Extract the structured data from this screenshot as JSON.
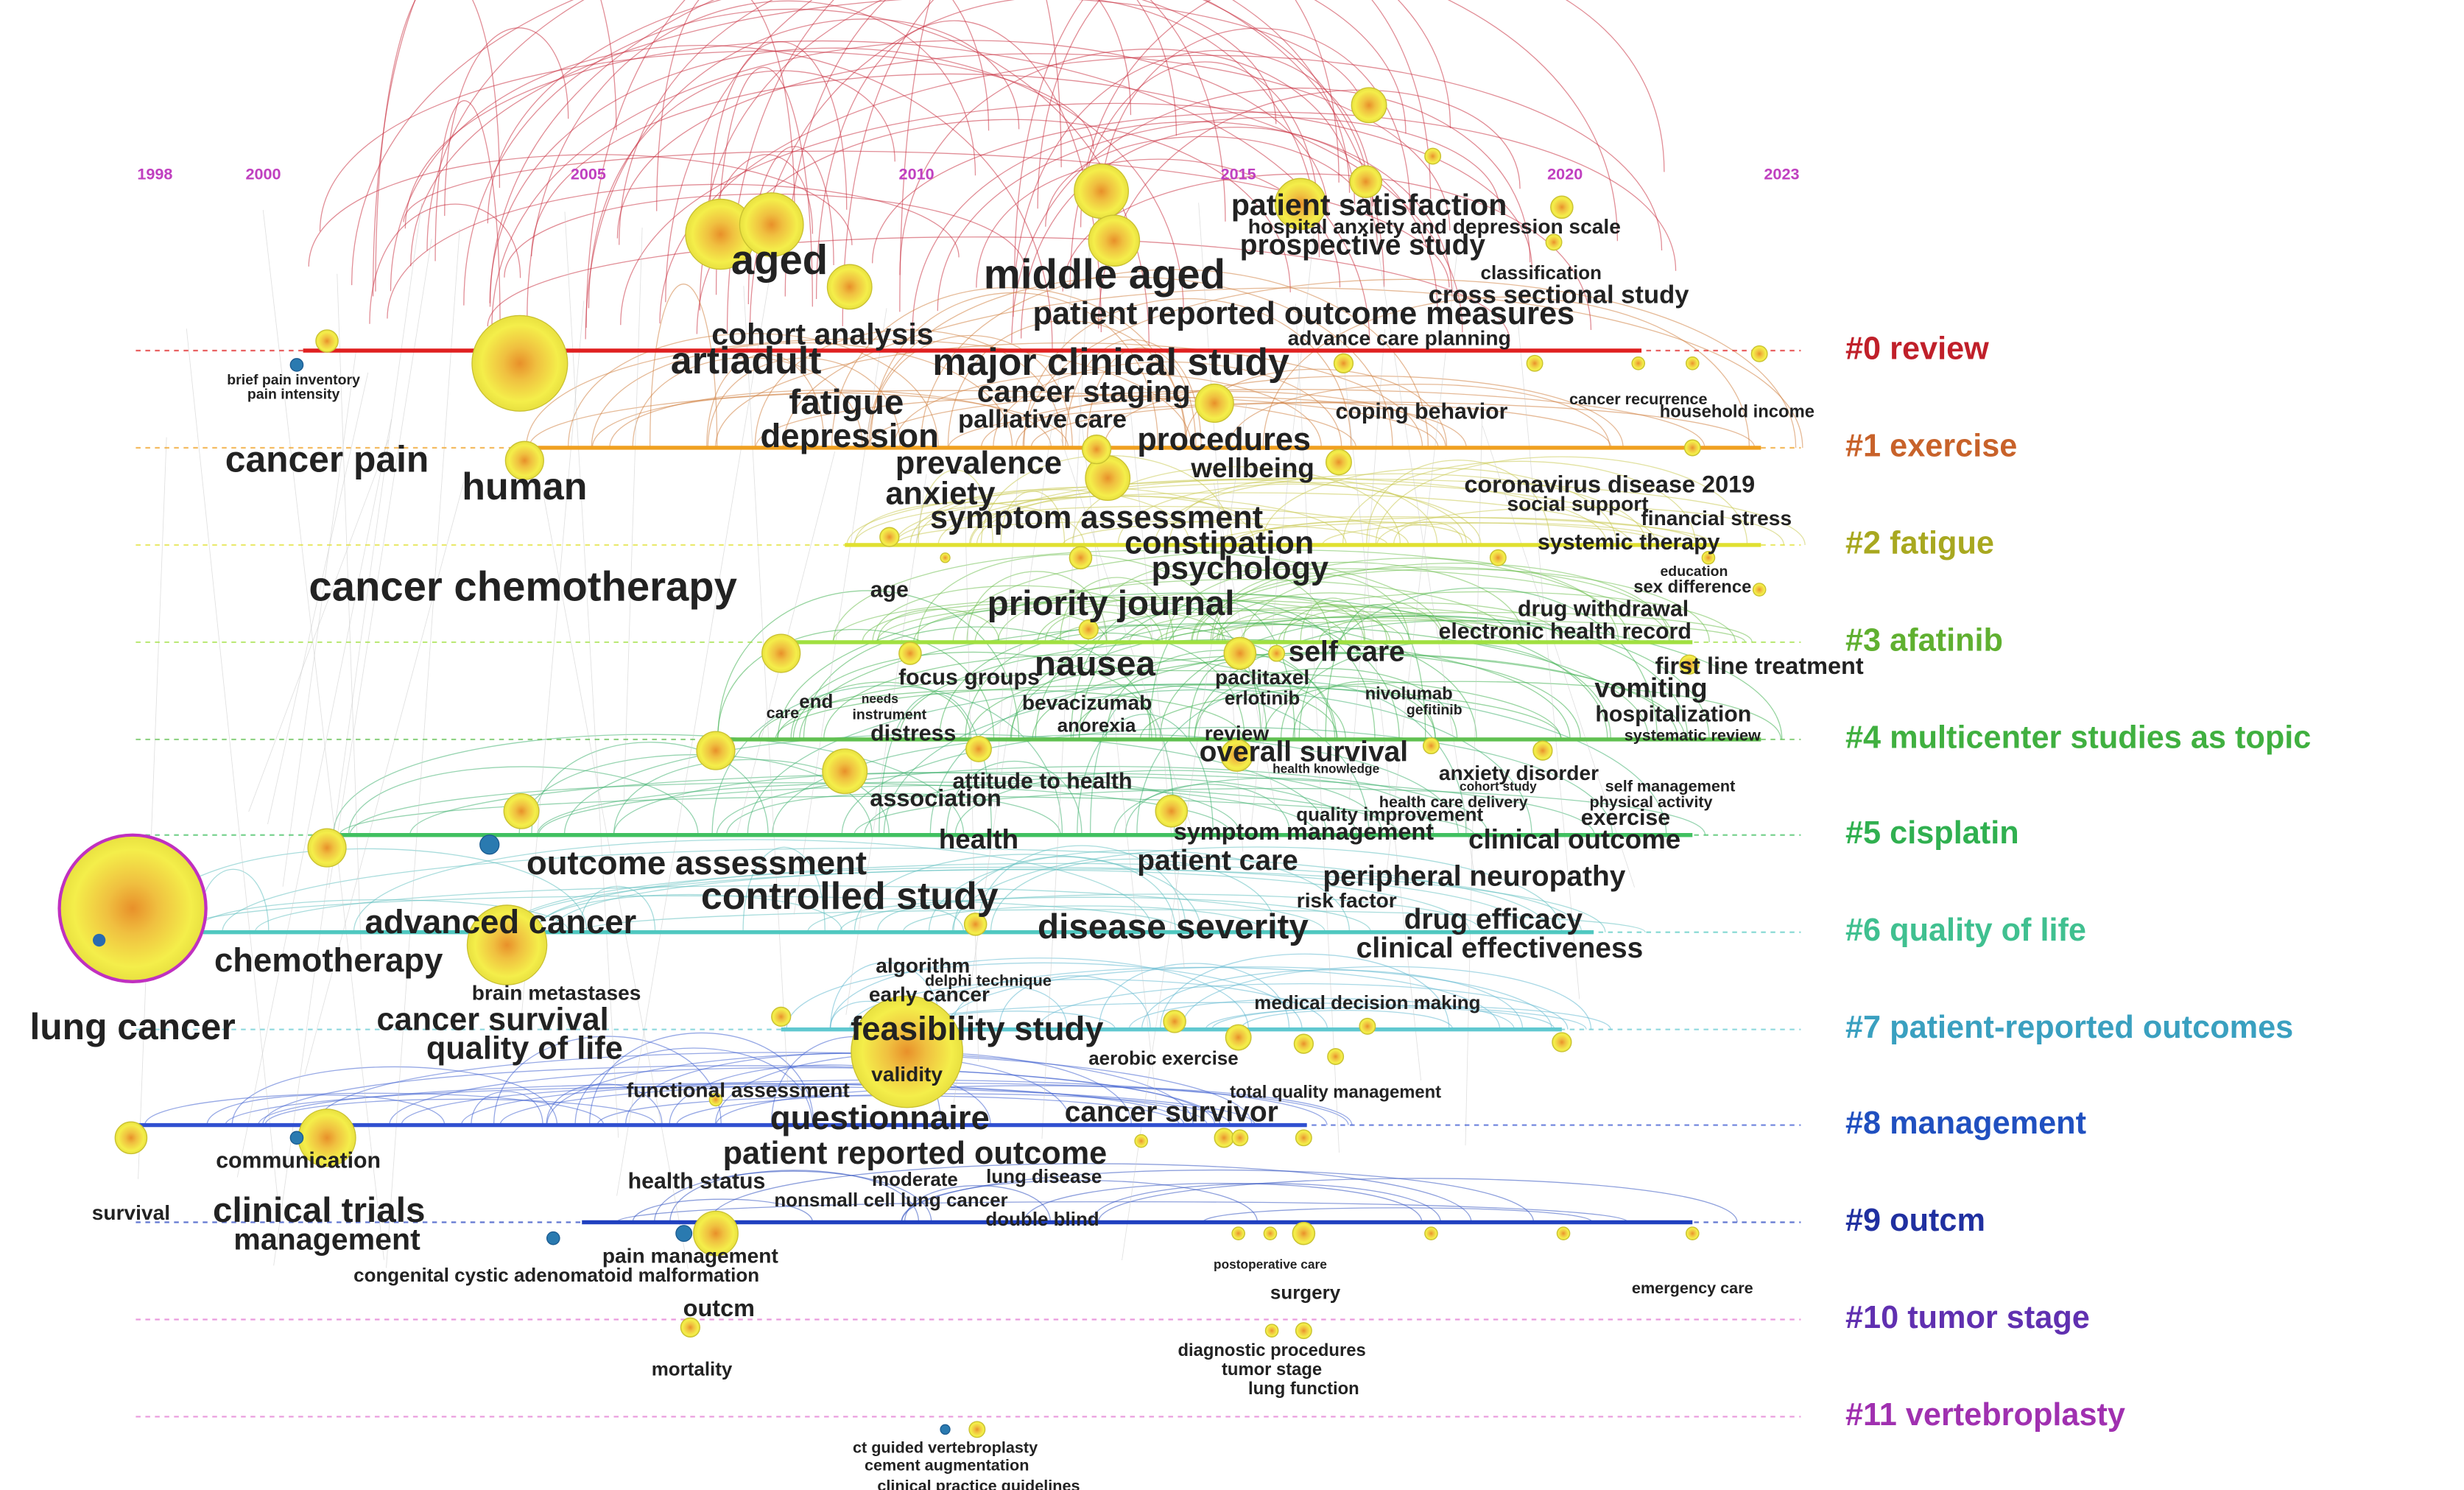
{
  "timeline": {
    "years": [
      "1998",
      "2000",
      "2005",
      "2010",
      "2015",
      "2020",
      "2023"
    ]
  },
  "clusters": [
    "#0 review",
    "#1 exercise",
    "#2 fatigue",
    "#3 afatinib",
    "#4 multicenter studies as topic",
    "#5 cisplatin",
    "#6 quality of life",
    "#7 patient-reported outcomes",
    "#8 management",
    "#9 outcm",
    "#10 tumor stage",
    "#11 vertebroplasty"
  ],
  "keywords": [
    "aged",
    "artiadult",
    "middle aged",
    "patient satisfaction",
    "hospital anxiety and depression scale",
    "prospective study",
    "classification",
    "cross sectional study",
    "patient reported outcome measures",
    "cohort analysis",
    "advance care planning",
    "major clinical study",
    "brief pain inventory",
    "pain intensity",
    "fatigue",
    "cancer staging",
    "palliative care",
    "coping behavior",
    "cancer recurrence",
    "household income",
    "depression",
    "procedures",
    "cancer pain",
    "prevalence",
    "wellbeing",
    "human",
    "coronavirus disease 2019",
    "anxiety",
    "social support",
    "symptom assessment",
    "financial stress",
    "constipation",
    "systemic therapy",
    "psychology",
    "education",
    "cancer chemotherapy",
    "age",
    "sex difference",
    "priority journal",
    "drug withdrawal",
    "electronic health record",
    "nausea",
    "self care",
    "first line treatment",
    "focus groups",
    "paclitaxel",
    "vomiting",
    "end",
    "care",
    "needs",
    "instrument",
    "bevacizumab",
    "erlotinib",
    "nivolumab",
    "gefitinib",
    "hospitalization",
    "anorexia",
    "distress",
    "review",
    "systematic review",
    "overall survival",
    "health knowledge",
    "anxiety disorder",
    "attitude to health",
    "cohort study",
    "self management",
    "association",
    "health care delivery",
    "physical activity",
    "quality improvement",
    "exercise",
    "health",
    "symptom management",
    "clinical outcome",
    "outcome assessment",
    "patient care",
    "peripheral neuropathy",
    "controlled study",
    "risk factor",
    "advanced cancer",
    "disease severity",
    "drug efficacy",
    "chemotherapy",
    "clinical effectiveness",
    "algorithm",
    "delphi technique",
    "early cancer",
    "brain metastases",
    "medical decision making",
    "cancer survival",
    "lung cancer",
    "feasibility study",
    "quality of life",
    "aerobic exercise",
    "validity",
    "functional assessment",
    "total quality management",
    "cancer survivor",
    "questionnaire",
    "communication",
    "patient reported outcome",
    "health status",
    "moderate",
    "lung disease",
    "nonsmall cell lung cancer",
    "survival",
    "clinical trials",
    "double blind",
    "management",
    "pain management",
    "postoperative care",
    "congenital cystic adenomatoid malformation",
    "emergency care",
    "surgery",
    "outcm",
    "diagnostic procedures",
    "mortality",
    "tumor stage",
    "lung function",
    "ct guided vertebroplasty",
    "cement augmentation",
    "clinical practice guidelines"
  ]
}
